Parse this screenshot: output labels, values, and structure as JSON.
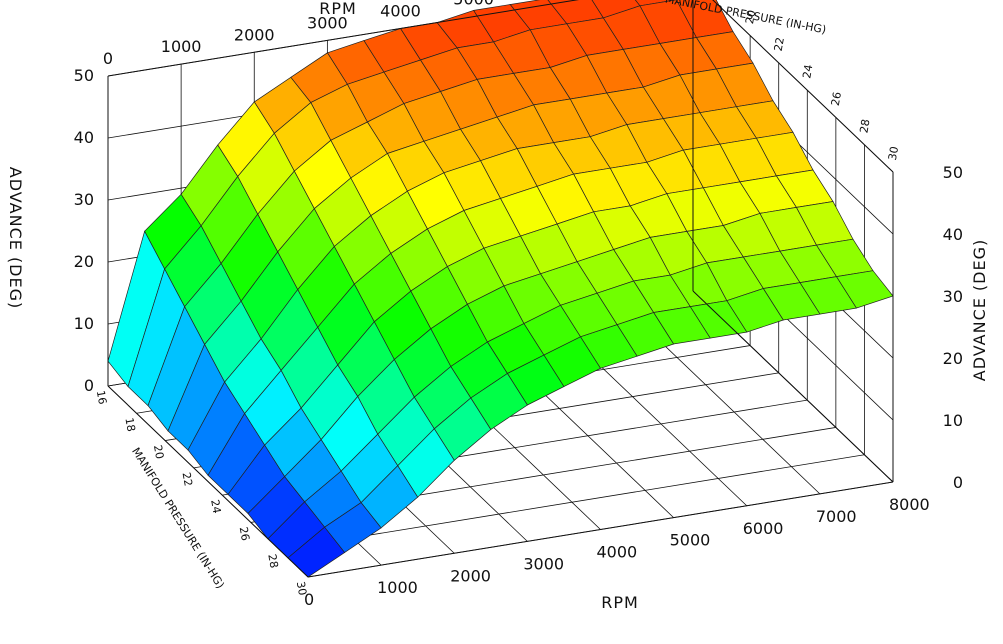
{
  "chart_data": {
    "type": "surface",
    "title": "",
    "x_axis": {
      "label": "RPM",
      "ticks": [
        "0",
        "1000",
        "2000",
        "3000",
        "4000",
        "5000",
        "6000",
        "7000",
        "8000"
      ],
      "range": [
        0,
        8000
      ]
    },
    "y_axis": {
      "label": "MANIFOLD PRESSURE (IN-HG)",
      "ticks": [
        "16",
        "18",
        "20",
        "22",
        "24",
        "26",
        "28",
        "30"
      ],
      "range": [
        16,
        30
      ]
    },
    "z_axis": {
      "label": "ADVANCE (DEG)",
      "ticks": [
        "0",
        "10",
        "20",
        "30",
        "40",
        "50"
      ],
      "range": [
        0,
        50
      ]
    },
    "rpm": [
      0,
      500,
      1000,
      1500,
      2000,
      2500,
      3000,
      3500,
      4000,
      4500,
      5000,
      5500,
      6000,
      6500,
      7000,
      7500,
      8000
    ],
    "manifold_pressure": [
      16,
      17.4,
      18.8,
      20.2,
      21.6,
      23,
      24.4,
      25.8,
      27.2,
      28.6,
      30
    ],
    "advance": [
      [
        4,
        24,
        29,
        36,
        42,
        45,
        48,
        49,
        50,
        50,
        51,
        51,
        51,
        52,
        52,
        52,
        52
      ],
      [
        3,
        21,
        27,
        34,
        40,
        44,
        46,
        47,
        48,
        49,
        49,
        50,
        50,
        50,
        51,
        51,
        51
      ],
      [
        3,
        18,
        24,
        31,
        37,
        41,
        43,
        45,
        46,
        47,
        47,
        47,
        48,
        48,
        48,
        48,
        48
      ],
      [
        2,
        15,
        21,
        28,
        34,
        38,
        41,
        42,
        43,
        44,
        45,
        45,
        45,
        45,
        46,
        46,
        46
      ],
      [
        2,
        12,
        18,
        25,
        31,
        35,
        38,
        40,
        41,
        42,
        42,
        42,
        43,
        43,
        43,
        43,
        43
      ],
      [
        1,
        10,
        16,
        22,
        28,
        32,
        35,
        37,
        38,
        39,
        40,
        40,
        40,
        41,
        41,
        41,
        41
      ],
      [
        1,
        8,
        13,
        19,
        25,
        29,
        32,
        34,
        35,
        36,
        37,
        37,
        38,
        38,
        38,
        38,
        38
      ],
      [
        1,
        6,
        11,
        17,
        22,
        26,
        29,
        31,
        32,
        33,
        34,
        35,
        35,
        35,
        36,
        36,
        36
      ],
      [
        0,
        5,
        9,
        14,
        19,
        23,
        26,
        28,
        30,
        31,
        32,
        32,
        33,
        33,
        33,
        33,
        33
      ],
      [
        0,
        4,
        7,
        12,
        17,
        21,
        24,
        26,
        28,
        29,
        30,
        30,
        30,
        31,
        31,
        31,
        31
      ],
      [
        0,
        3,
        6,
        10,
        15,
        19,
        22,
        24,
        26,
        27,
        28,
        28,
        28,
        29,
        29,
        29,
        30
      ]
    ],
    "colormap": [
      "#0000ff",
      "#00ffff",
      "#00ff00",
      "#ffff00",
      "#ff4000"
    ]
  }
}
